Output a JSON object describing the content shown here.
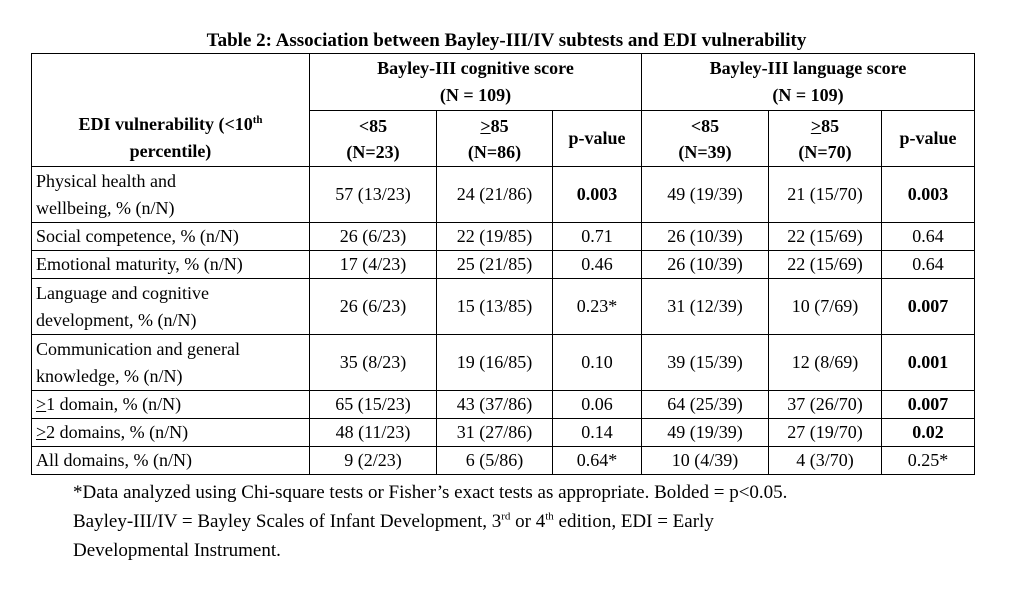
{
  "title": "Table 2: Association between Bayley-III/IV subtests and EDI vulnerability",
  "header": {
    "edi_col_line1": "EDI vulnerability (<10",
    "edi_col_sup": "th",
    "edi_col_line2": "percentile)",
    "cog_group_line1": "Bayley-III cognitive score",
    "cog_group_line2": "(N = 109)",
    "lang_group_line1": "Bayley-III language score",
    "lang_group_line2": "(N = 109)",
    "cog_lt_line1": "<85",
    "cog_lt_line2": "(N=23)",
    "cog_ge_symbol": ">",
    "cog_ge_line1": "85",
    "cog_ge_line2": "(N=86)",
    "pvalue_label": "p-value",
    "lang_lt_line1": "<85",
    "lang_lt_line2": "(N=39)",
    "lang_ge_symbol": ">",
    "lang_ge_line1": "85",
    "lang_ge_line2": "(N=70)"
  },
  "rows": [
    {
      "line1": "Physical health and",
      "line2": "wellbeing, % (n/N)",
      "c1": "57 (13/23)",
      "c2": "24 (21/86)",
      "p1": "0.003",
      "c3": "49 (19/39)",
      "c4": "21 (15/70)",
      "p2": "0.003"
    },
    {
      "line1": "Social competence, % (n/N)",
      "c1": "26 (6/23)",
      "c2": "22 (19/85)",
      "p1": "0.71",
      "c3": "26 (10/39)",
      "c4": "22 (15/69)",
      "p2": "0.64"
    },
    {
      "line1": "Emotional maturity, % (n/N)",
      "c1": "17 (4/23)",
      "c2": "25 (21/85)",
      "p1": "0.46",
      "c3": "26 (10/39)",
      "c4": "22 (15/69)",
      "p2": "0.64"
    },
    {
      "line1": "Language and cognitive",
      "line2": "development, % (n/N)",
      "c1": "26 (6/23)",
      "c2": "15 (13/85)",
      "p1": "0.23*",
      "c3": "31 (12/39)",
      "c4": "10 (7/69)",
      "p2": "0.007"
    },
    {
      "line1": "Communication and general",
      "line2": "knowledge, % (n/N)",
      "c1": "35 (8/23)",
      "c2": "19 (16/85)",
      "p1": "0.10",
      "c3": "39 (15/39)",
      "c4": "12 (8/69)",
      "p2": "0.001"
    },
    {
      "sym": ">",
      "line1": "1 domain, % (n/N)",
      "c1": "65 (15/23)",
      "c2": "43 (37/86)",
      "p1": "0.06",
      "c3": "64 (25/39)",
      "c4": "37 (26/70)",
      "p2": "0.007"
    },
    {
      "sym": ">",
      "line1": "2 domains, % (n/N)",
      "c1": "48 (11/23)",
      "c2": "31 (27/86)",
      "p1": "0.14",
      "c3": "49 (19/39)",
      "c4": "27 (19/70)",
      "p2": "0.02"
    },
    {
      "line1": "All domains, % (n/N)",
      "c1": "9 (2/23)",
      "c2": "6 (5/86)",
      "p1": "0.64*",
      "c3": "10 (4/39)",
      "c4": "4 (3/70)",
      "p2": "0.25*"
    }
  ],
  "footnote": {
    "line1": "*Data analyzed using Chi-square tests or Fisher’s exact tests as appropriate. Bolded = p<0.05.",
    "line2_a": "Bayley-III/IV = Bayley Scales of Infant Development, 3",
    "line2_sup1": "rd",
    "line2_b": " or 4",
    "line2_sup2": "th",
    "line2_c": " edition, EDI = Early",
    "line3": "Developmental Instrument."
  }
}
